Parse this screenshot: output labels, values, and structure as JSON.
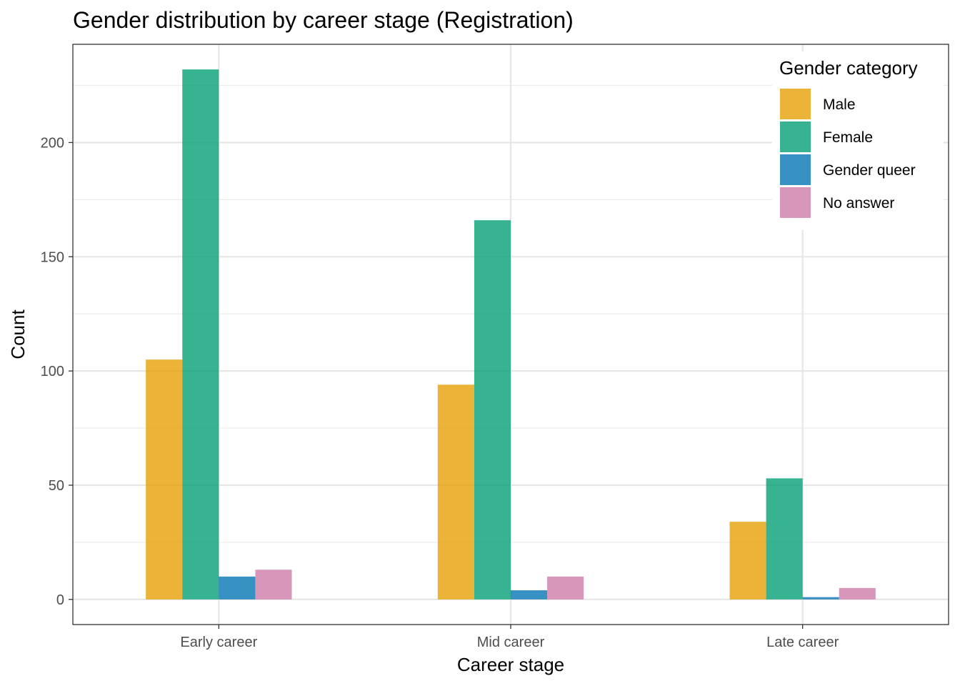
{
  "chart_data": {
    "type": "bar",
    "title": "Gender distribution by career stage (Registration)",
    "xlabel": "Career stage",
    "ylabel": "Count",
    "categories": [
      "Early career",
      "Mid career",
      "Late career"
    ],
    "series": [
      {
        "name": "Male",
        "color": "#E69F00",
        "values": [
          105,
          94,
          34
        ]
      },
      {
        "name": "Female",
        "color": "#009E73",
        "values": [
          232,
          166,
          53
        ]
      },
      {
        "name": "Gender queer",
        "color": "#0072B2",
        "values": [
          10,
          4,
          1
        ]
      },
      {
        "name": "No answer",
        "color": "#CC79A7",
        "values": [
          13,
          10,
          5
        ]
      }
    ],
    "ylim": [
      -11,
      243
    ],
    "yticks": [
      0,
      50,
      100,
      150,
      200
    ],
    "grid": true,
    "legend": {
      "title": "Gender category",
      "position": "top-right"
    }
  }
}
